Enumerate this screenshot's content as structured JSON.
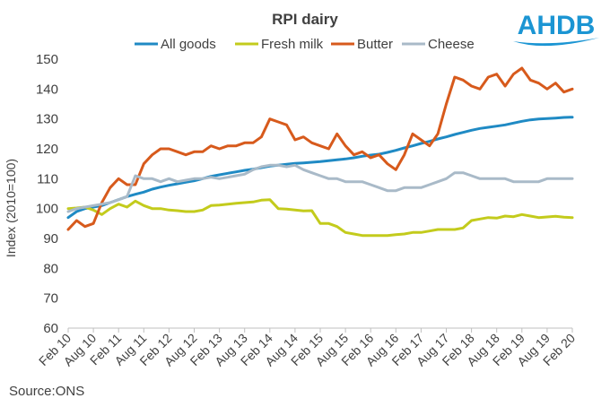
{
  "logo": {
    "text": "AHDB",
    "color": "#1b95d3"
  },
  "source": "Source:ONS",
  "chart_data": {
    "type": "line",
    "title": "RPI dairy",
    "ylabel": "Index (2010=100)",
    "xlabel": "",
    "ylim": [
      60,
      150
    ],
    "yticks": [
      60,
      70,
      80,
      90,
      100,
      110,
      120,
      130,
      140,
      150
    ],
    "grid": false,
    "legend_position": "top",
    "x_start": "Feb 10",
    "x_end": "Feb 20",
    "x_tick_labels": [
      "Feb 10",
      "Aug 10",
      "Feb 11",
      "Aug 11",
      "Feb 12",
      "Aug 12",
      "Feb 13",
      "Aug 13",
      "Feb 14",
      "Aug 14",
      "Feb 15",
      "Aug 15",
      "Feb 16",
      "Aug 16",
      "Feb 17",
      "Aug 17",
      "Feb 18",
      "Aug 18",
      "Feb 19",
      "Aug 19",
      "Feb 20"
    ],
    "series": [
      {
        "name": "All goods",
        "color": "#1f8ac4",
        "values": [
          97,
          99,
          100,
          100.5,
          101,
          102,
          103,
          104,
          104.8,
          105.5,
          106.5,
          107.2,
          107.8,
          108.3,
          108.8,
          109.3,
          110,
          110.8,
          111.3,
          111.8,
          112.3,
          112.8,
          113.2,
          113.7,
          114.2,
          114.5,
          114.8,
          115.1,
          115.3,
          115.5,
          115.7,
          116,
          116.3,
          116.6,
          117,
          117.5,
          117.9,
          118.2,
          118.8,
          119.5,
          120.3,
          121,
          121.8,
          122.5,
          123.3,
          124,
          124.8,
          125.5,
          126.2,
          126.8,
          127.2,
          127.6,
          128,
          128.6,
          129.2,
          129.7,
          130,
          130.1,
          130.3,
          130.5,
          130.6
        ]
      },
      {
        "name": "Fresh milk",
        "color": "#c3cb1c",
        "values": [
          100,
          100.2,
          100.5,
          99.5,
          98,
          100,
          101.5,
          100.5,
          102.5,
          101,
          100,
          100,
          99.5,
          99.3,
          99,
          99,
          99.5,
          101,
          101.2,
          101.5,
          101.8,
          102,
          102.2,
          102.8,
          103,
          100,
          99.8,
          99.5,
          99.2,
          99.3,
          95,
          95,
          94,
          92,
          91.5,
          91,
          91,
          91,
          91,
          91.3,
          91.5,
          92,
          92,
          92.5,
          93,
          93,
          93,
          93.5,
          96,
          96.5,
          97,
          96.8,
          97.5,
          97.3,
          98,
          97.5,
          97,
          97.2,
          97.4,
          97.1,
          97
        ]
      },
      {
        "name": "Butter",
        "color": "#d75a1c",
        "values": [
          93,
          96,
          94,
          95,
          102,
          107,
          110,
          108,
          108,
          115,
          118,
          120,
          120,
          119,
          118,
          119,
          119,
          121,
          120,
          121,
          121,
          122,
          122,
          124,
          130,
          129,
          128,
          123,
          124,
          122,
          121,
          120,
          125,
          121,
          118,
          119,
          117,
          118,
          115,
          113,
          118,
          125,
          123,
          121,
          125,
          135,
          144,
          143,
          141,
          140,
          144,
          145,
          141,
          145,
          147,
          143,
          142,
          140,
          142,
          139,
          140
        ]
      },
      {
        "name": "Cheese",
        "color": "#a9bac8",
        "values": [
          99,
          100,
          100.5,
          101,
          101.5,
          102,
          103,
          104,
          111,
          110,
          110,
          109,
          110,
          109,
          109.5,
          110,
          110,
          110.5,
          110,
          110.5,
          111,
          111.5,
          113,
          114,
          114.5,
          114.5,
          114,
          114.5,
          113,
          112,
          111,
          110,
          110,
          109,
          109,
          109,
          108,
          107,
          106,
          106,
          107,
          107,
          107,
          108,
          109,
          110,
          112,
          112,
          111,
          110,
          110,
          110,
          110,
          109,
          109,
          109,
          109,
          110,
          110,
          110,
          110
        ]
      }
    ]
  }
}
